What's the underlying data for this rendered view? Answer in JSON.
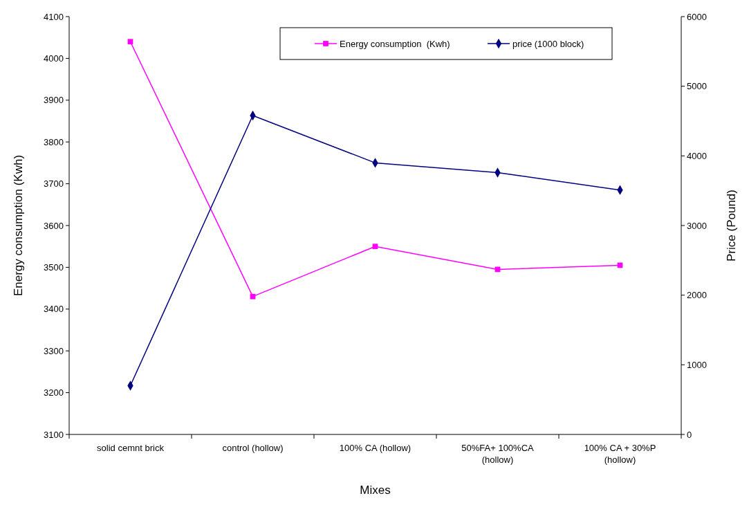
{
  "chart_data": {
    "type": "line",
    "xlabel": "Mixes",
    "ylabel": "Energy consumption (Kwh)",
    "y2label": "Price (Pound)",
    "categories": [
      "solid cemnt brick",
      "control (hollow)",
      "100% CA (hollow)",
      "50%FA+ 100%CA (hollow)",
      "100% CA + 30%P (hollow)"
    ],
    "series": [
      {
        "name": "Energy consumption  (Kwh)",
        "color": "#ff00ff",
        "marker": "square",
        "values": [
          4040,
          3430,
          3550,
          3495,
          3505
        ]
      },
      {
        "name": "price (1000 block)",
        "color": "#000080",
        "marker": "diamond",
        "axis": "y2",
        "values": [
          700,
          4580,
          3900,
          3760,
          3510
        ]
      }
    ],
    "ylim": [
      3100,
      4100
    ],
    "yticks": [
      3100,
      3200,
      3300,
      3400,
      3500,
      3600,
      3700,
      3800,
      3900,
      4000,
      4100
    ],
    "y2lim": [
      0,
      6000
    ],
    "y2ticks": [
      0,
      1000,
      2000,
      3000,
      4000,
      5000,
      6000
    ],
    "legend": "top right",
    "grid": false
  }
}
